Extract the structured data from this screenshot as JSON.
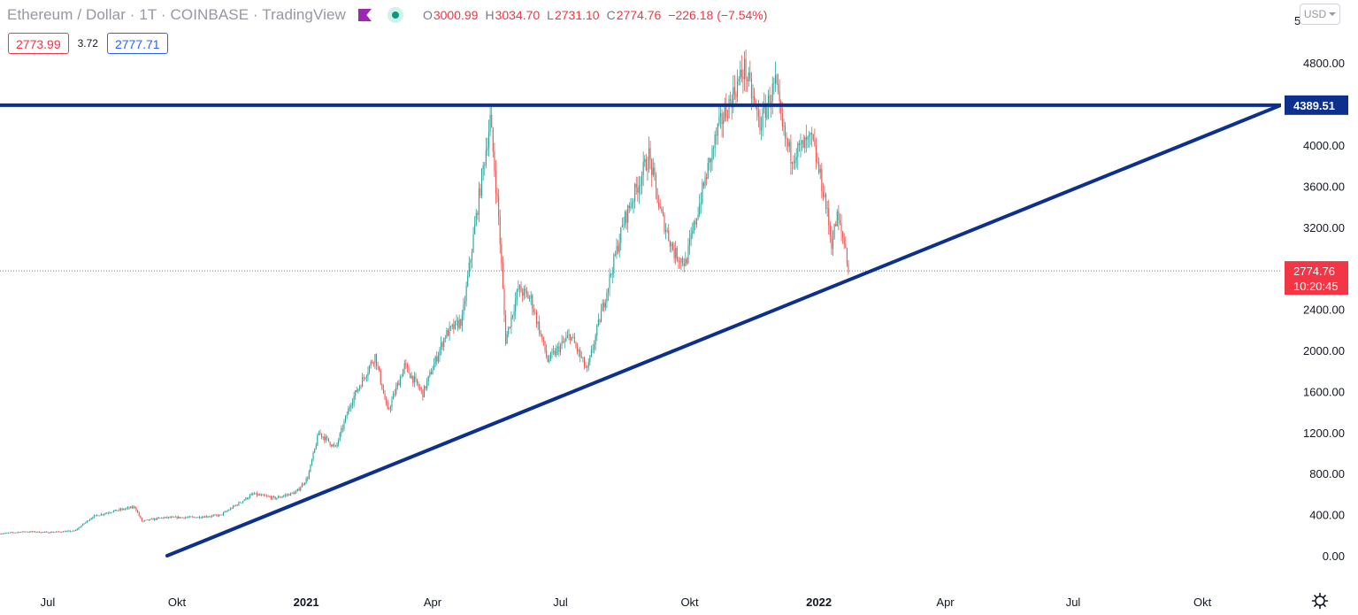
{
  "header": {
    "symbol_title": "Ethereum / Dollar · 1T · COINBASE · TradingView",
    "flag_color": "#9c27b0",
    "market_status": "open",
    "ohlc": {
      "o_label": "O",
      "o": "3000.99",
      "h_label": "H",
      "h": "3034.70",
      "l_label": "L",
      "l": "2731.10",
      "c_label": "C",
      "c": "2774.76",
      "change": "−226.18 (−7.54%)"
    }
  },
  "quote": {
    "bid": "2773.99",
    "spread": "3.72",
    "ask": "2777.71"
  },
  "currency_selector": {
    "label": "USD"
  },
  "icons": {
    "currency_caret": "chevron-down-icon",
    "settings": "gear-icon",
    "flag": "flag-icon",
    "status": "market-open-icon"
  },
  "colors": {
    "up": "#26a69a",
    "down": "#ef5350",
    "trendline": "#0d2f8e",
    "last_price": "#f23645"
  },
  "chart_data": {
    "type": "candlestick",
    "title": "Ethereum / Dollar · 1T · COINBASE",
    "interval": "1T",
    "currency": "USD",
    "y_range": [
      -150,
      5000
    ],
    "y_ticks": [
      "0.00",
      "400.00",
      "800.00",
      "1200.00",
      "1600.00",
      "2000.00",
      "2400.00",
      "3200.00",
      "3600.00",
      "4000.00",
      "4800.00"
    ],
    "y_top_partial": "5",
    "x_range": [
      "2020-05-28",
      "2022-11-26"
    ],
    "x_ticks": [
      {
        "label": "Jul",
        "date": "2020-07-01",
        "bold": false
      },
      {
        "label": "Okt",
        "date": "2020-10-01",
        "bold": false
      },
      {
        "label": "2021",
        "date": "2021-01-01",
        "bold": true
      },
      {
        "label": "Apr",
        "date": "2021-04-01",
        "bold": false
      },
      {
        "label": "Jul",
        "date": "2021-07-01",
        "bold": false
      },
      {
        "label": "Okt",
        "date": "2021-10-01",
        "bold": false
      },
      {
        "label": "2022",
        "date": "2022-01-01",
        "bold": true
      },
      {
        "label": "Apr",
        "date": "2022-04-01",
        "bold": false
      },
      {
        "label": "Jul",
        "date": "2022-07-01",
        "bold": false
      },
      {
        "label": "Okt",
        "date": "2022-10-01",
        "bold": false
      }
    ],
    "close_path": [
      [
        "2020-05-28",
        215
      ],
      [
        "2020-06-15",
        235
      ],
      [
        "2020-07-01",
        228
      ],
      [
        "2020-07-20",
        240
      ],
      [
        "2020-08-02",
        380
      ],
      [
        "2020-08-15",
        430
      ],
      [
        "2020-09-01",
        475
      ],
      [
        "2020-09-06",
        335
      ],
      [
        "2020-09-20",
        370
      ],
      [
        "2020-10-15",
        375
      ],
      [
        "2020-11-01",
        395
      ],
      [
        "2020-11-24",
        600
      ],
      [
        "2020-12-10",
        560
      ],
      [
        "2020-12-25",
        620
      ],
      [
        "2021-01-02",
        760
      ],
      [
        "2021-01-10",
        1200
      ],
      [
        "2021-01-22",
        1050
      ],
      [
        "2021-02-02",
        1500
      ],
      [
        "2021-02-19",
        1950
      ],
      [
        "2021-02-28",
        1400
      ],
      [
        "2021-03-12",
        1850
      ],
      [
        "2021-03-25",
        1580
      ],
      [
        "2021-04-10",
        2150
      ],
      [
        "2021-04-22",
        2300
      ],
      [
        "2021-05-03",
        3400
      ],
      [
        "2021-05-12",
        4250
      ],
      [
        "2021-05-18",
        3300
      ],
      [
        "2021-05-23",
        2100
      ],
      [
        "2021-06-01",
        2600
      ],
      [
        "2021-06-10",
        2500
      ],
      [
        "2021-06-22",
        1900
      ],
      [
        "2021-07-08",
        2150
      ],
      [
        "2021-07-20",
        1800
      ],
      [
        "2021-08-05",
        2700
      ],
      [
        "2021-08-15",
        3250
      ],
      [
        "2021-09-02",
        3900
      ],
      [
        "2021-09-10",
        3350
      ],
      [
        "2021-09-20",
        2950
      ],
      [
        "2021-09-28",
        2850
      ],
      [
        "2021-10-10",
        3550
      ],
      [
        "2021-10-21",
        4150
      ],
      [
        "2021-11-09",
        4750
      ],
      [
        "2021-11-20",
        4200
      ],
      [
        "2021-12-01",
        4600
      ],
      [
        "2021-12-06",
        4150
      ],
      [
        "2021-12-12",
        3900
      ],
      [
        "2021-12-27",
        4050
      ],
      [
        "2022-01-05",
        3500
      ],
      [
        "2022-01-10",
        3050
      ],
      [
        "2022-01-14",
        3300
      ],
      [
        "2022-01-20",
        3000
      ],
      [
        "2022-01-22",
        2775
      ]
    ],
    "trendline": {
      "start": [
        "2020-09-24",
        0
      ],
      "end": [
        "2022-11-26",
        4389.51
      ]
    },
    "resistance_line": {
      "value": 4389.51,
      "label": "4389.51"
    },
    "last_price": {
      "value": 2774.76,
      "label": "2774.76",
      "countdown": "10:20:45"
    }
  }
}
